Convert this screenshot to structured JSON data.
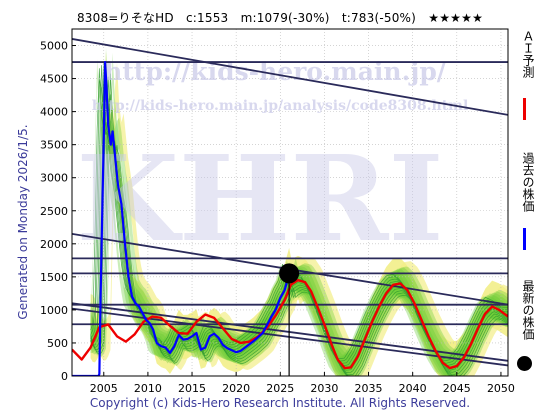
{
  "header": {
    "title": "8308=りそなHD　c:1553　m:1079(-30%)　t:783(-50%)　★★★★★"
  },
  "side_note": "Generated on Monday 2026/1/5.",
  "footer": "Copyright (c) Kids-Hero Research Institute. All Rights Reserved.",
  "watermarks": {
    "url1": "http://kids-hero.main.jp/",
    "url2": "http://kids-hero.main.jp/analysis/code8308.html",
    "big": "KHRI"
  },
  "legend": {
    "ai_forecast": "ＡＩ予測",
    "past_price": "過去の株価",
    "latest_price": "最新の株価"
  },
  "colors": {
    "past": "#0000ff",
    "ai": "#ee0000",
    "latest": "#000000",
    "band_green": "#66cc33",
    "band_yellow": "#f2ee88",
    "trend": "#2a2a5a",
    "watermark": "#c8c8e8"
  },
  "chart_data": {
    "type": "line",
    "xlim": [
      2001.4,
      2050.8
    ],
    "ylim": [
      0,
      5250
    ],
    "xticks": [
      2005,
      2010,
      2015,
      2020,
      2025,
      2030,
      2035,
      2040,
      2045,
      2050
    ],
    "yticks": [
      0,
      500,
      1000,
      1500,
      2000,
      2500,
      3000,
      3500,
      4000,
      4500,
      5000
    ],
    "grid": true,
    "horizontal_levels": [
      4750,
      1780,
      1553,
      1079,
      783
    ],
    "trend_lines": [
      {
        "x": [
          2001.4,
          2050.8
        ],
        "y": [
          5100,
          3950
        ]
      },
      {
        "x": [
          2001.4,
          2050.8
        ],
        "y": [
          2150,
          1080
        ]
      },
      {
        "x": [
          2001.4,
          2050.8
        ],
        "y": [
          1100,
          230
        ]
      },
      {
        "x": [
          2001.4,
          2050.8
        ],
        "y": [
          1020,
          160
        ]
      }
    ],
    "latest": {
      "x": 2026.0,
      "y": 1553
    },
    "series": [
      {
        "name": "過去の株価",
        "x": [
          2001.4,
          2004.4,
          2004.5,
          2004.6,
          2004.8,
          2005.0,
          2005.15,
          2005.3,
          2005.5,
          2005.8,
          2006.0,
          2006.3,
          2006.6,
          2007.0,
          2007.4,
          2007.8,
          2008.2,
          2008.6,
          2009.0,
          2009.4,
          2009.8,
          2010.2,
          2010.6,
          2011.0,
          2011.5,
          2012.0,
          2012.5,
          2013.0,
          2013.5,
          2014.0,
          2014.5,
          2015.0,
          2015.5,
          2016.0,
          2016.5,
          2017.0,
          2017.5,
          2018.0,
          2018.5,
          2019.0,
          2019.5,
          2020.0,
          2020.5,
          2021.0,
          2021.5,
          2022.0,
          2022.5,
          2023.0,
          2023.5,
          2024.0,
          2024.5,
          2025.0,
          2025.5,
          2026.0
        ],
        "y": [
          0,
          0,
          30,
          900,
          2300,
          3600,
          4750,
          4400,
          3800,
          3500,
          3700,
          3300,
          2900,
          2600,
          2000,
          1500,
          1200,
          1100,
          1050,
          950,
          850,
          800,
          700,
          500,
          450,
          430,
          350,
          450,
          620,
          550,
          560,
          600,
          650,
          400,
          430,
          600,
          640,
          580,
          470,
          420,
          390,
          360,
          380,
          430,
          480,
          530,
          590,
          650,
          770,
          900,
          1010,
          1180,
          1300,
          1553
        ]
      },
      {
        "name": "ＡＩ予測",
        "x": [
          2001.4,
          2002.5,
          2003.5,
          2004.5,
          2005.5,
          2006.5,
          2007.5,
          2008.5,
          2009.5,
          2010.5,
          2011.5,
          2012.5,
          2013.5,
          2014.5,
          2015.5,
          2016.5,
          2017.5,
          2018.5,
          2019.5,
          2020.5,
          2021.5,
          2022.5,
          2023.5,
          2024.5,
          2025.5,
          2026.2,
          2027.0,
          2027.8,
          2028.5,
          2029.2,
          2030.0,
          2030.8,
          2031.5,
          2032.3,
          2033.0,
          2033.8,
          2034.6,
          2035.4,
          2036.2,
          2037.0,
          2037.8,
          2038.6,
          2039.4,
          2040.2,
          2041.0,
          2041.8,
          2042.6,
          2043.4,
          2044.2,
          2045.0,
          2045.8,
          2046.6,
          2047.4,
          2048.2,
          2049.0,
          2049.8,
          2050.8
        ],
        "y": [
          400,
          250,
          430,
          740,
          780,
          600,
          520,
          630,
          820,
          900,
          880,
          760,
          650,
          640,
          820,
          930,
          880,
          720,
          560,
          500,
          520,
          600,
          730,
          920,
          1150,
          1380,
          1450,
          1420,
          1280,
          1050,
          780,
          480,
          250,
          120,
          130,
          300,
          560,
          820,
          1050,
          1250,
          1380,
          1400,
          1300,
          1100,
          850,
          600,
          380,
          200,
          120,
          150,
          280,
          480,
          720,
          940,
          1050,
          1000,
          900
        ]
      }
    ]
  }
}
